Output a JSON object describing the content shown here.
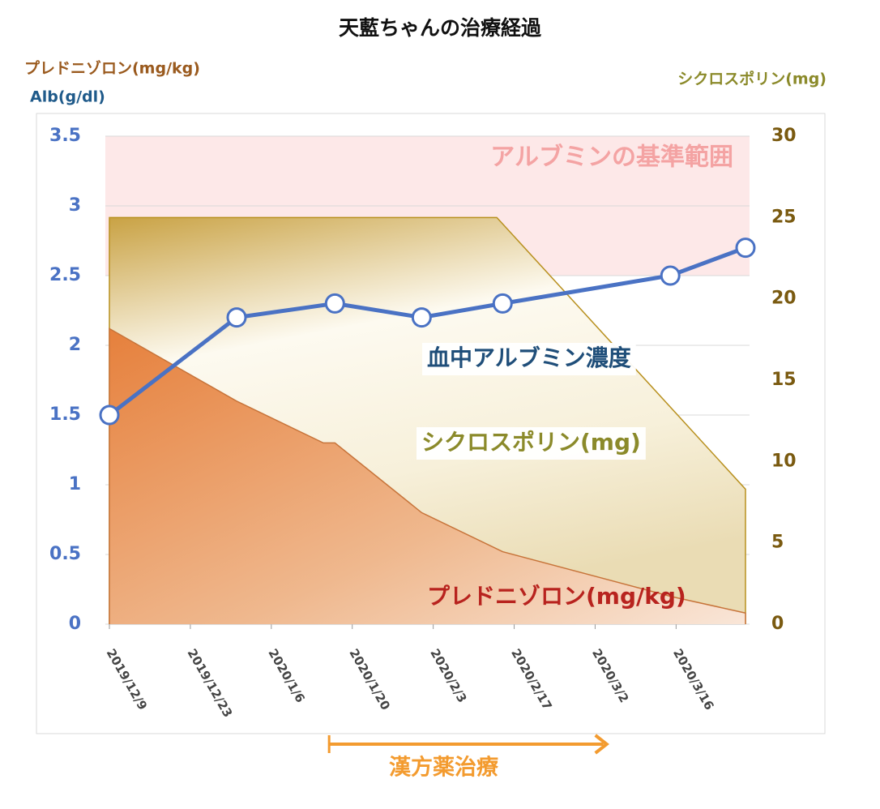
{
  "chart_data": {
    "type": "line",
    "title": "天藍ちゃんの治療経過",
    "y_axis_titles": [
      "プレドニゾロン(mg/kg)",
      "Alb(g/dl)"
    ],
    "y2_axis_title": "シクロスポリン(mg)",
    "xlim": [
      "2019-12-09",
      "2020-03-28"
    ],
    "xticks": [
      {
        "value": "2019-12-09",
        "label": "2019/12/9"
      },
      {
        "value": "2019-12-23",
        "label": "2019/12/23"
      },
      {
        "value": "2020-01-06",
        "label": "2020/1/6"
      },
      {
        "value": "2020-01-20",
        "label": "2020/1/20"
      },
      {
        "value": "2020-02-03",
        "label": "2020/2/3"
      },
      {
        "value": "2020-02-17",
        "label": "2020/2/17"
      },
      {
        "value": "2020-03-02",
        "label": "2020/3/2"
      },
      {
        "value": "2020-03-16",
        "label": "2020/3/16"
      }
    ],
    "ylim": [
      0,
      3.5
    ],
    "yticks": [
      0,
      0.5,
      1,
      1.5,
      2,
      2.5,
      3,
      3.5
    ],
    "y2lim": [
      0,
      30
    ],
    "y2ticks": [
      0,
      5,
      10,
      15,
      20,
      25,
      30
    ],
    "grid": true,
    "reference_band": {
      "label": "アルブミンの基準範囲",
      "range": [
        2.5,
        3.5
      ],
      "color": "#fde8e8"
    },
    "series": [
      {
        "name": "シクロスポリン(mg)",
        "kind": "area",
        "axis": "y2",
        "color": "#b8901e",
        "x": [
          "2019-12-09",
          "2020-02-14",
          "2020-03-28"
        ],
        "values": [
          25,
          25,
          8.3
        ]
      },
      {
        "name": "プレドニゾロン(mg/kg)",
        "kind": "area",
        "color": "#e8803a",
        "x": [
          "2019-12-09",
          "2019-12-31",
          "2020-01-15",
          "2020-01-17",
          "2020-02-01",
          "2020-02-15",
          "2020-03-15",
          "2020-03-28"
        ],
        "values": [
          2.12,
          1.6,
          1.3,
          1.3,
          0.8,
          0.52,
          0.2,
          0.08
        ]
      },
      {
        "name": "血中アルブミン濃度",
        "kind": "line",
        "color": "#4a72c4",
        "x": [
          "2019-12-09",
          "2019-12-31",
          "2020-01-17",
          "2020-02-01",
          "2020-02-15",
          "2020-03-15",
          "2020-03-28"
        ],
        "values": [
          1.5,
          2.2,
          2.3,
          2.2,
          2.3,
          2.5,
          2.7
        ]
      }
    ],
    "annotation": {
      "label": "漢方薬治療",
      "start": "2020-01-16",
      "end": "2020-03-04",
      "color": "#f39b2f"
    }
  }
}
